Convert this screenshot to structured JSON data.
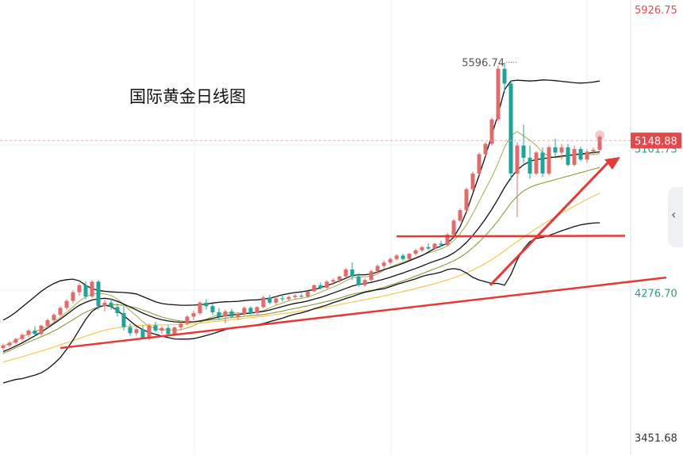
{
  "chart_data": {
    "type": "candlestick",
    "title": "国际黄金日线图",
    "ylim": [
      3451.68,
      5926.75
    ],
    "y_ticks": [
      {
        "value": 5926.75,
        "label": "5926.75",
        "color": "#e04a4a"
      },
      {
        "value": 5101.73,
        "label": "5101.73",
        "color": "#1f9e89"
      },
      {
        "value": 4276.7,
        "label": "4276.70",
        "color": "#1f9e89"
      },
      {
        "value": 3451.68,
        "label": "3451.68",
        "color": "#333333"
      }
    ],
    "current_price": {
      "value": 5148.88,
      "label": "5148.88"
    },
    "high_marker": {
      "value": 5596.74,
      "label": "5596.74"
    },
    "colors": {
      "up": "#e06b6b",
      "down": "#1fa39a",
      "ma_short": "#a7b35a",
      "ma_mid": "#8a9a3c",
      "ma_long": "#f2c94c",
      "band": "#111111",
      "trend": "#e53935",
      "price_line": "#f4a0a0"
    },
    "candles": [
      [
        3960,
        3985,
        3950,
        3975
      ],
      [
        3975,
        4000,
        3965,
        3990
      ],
      [
        3990,
        4020,
        3980,
        4012
      ],
      [
        4012,
        4045,
        4000,
        4035
      ],
      [
        4035,
        4070,
        4020,
        4060
      ],
      [
        4060,
        4085,
        4030,
        4040
      ],
      [
        4040,
        4095,
        4030,
        4088
      ],
      [
        4088,
        4130,
        4075,
        4120
      ],
      [
        4120,
        4160,
        4105,
        4150
      ],
      [
        4150,
        4200,
        4140,
        4190
      ],
      [
        4190,
        4240,
        4180,
        4230
      ],
      [
        4230,
        4290,
        4215,
        4280
      ],
      [
        4280,
        4330,
        4260,
        4320
      ],
      [
        4320,
        4340,
        4240,
        4255
      ],
      [
        4255,
        4350,
        4245,
        4340
      ],
      [
        4340,
        4352,
        4180,
        4200
      ],
      [
        4200,
        4235,
        4170,
        4220
      ],
      [
        4220,
        4245,
        4180,
        4195
      ],
      [
        4195,
        4215,
        4140,
        4160
      ],
      [
        4160,
        4200,
        4060,
        4080
      ],
      [
        4080,
        4100,
        4030,
        4045
      ],
      [
        4045,
        4080,
        4030,
        4068
      ],
      [
        4068,
        4090,
        4010,
        4020
      ],
      [
        4020,
        4100,
        4005,
        4090
      ],
      [
        4090,
        4110,
        4050,
        4060
      ],
      [
        4060,
        4085,
        4040,
        4075
      ],
      [
        4075,
        4090,
        4030,
        4040
      ],
      [
        4040,
        4085,
        4030,
        4078
      ],
      [
        4078,
        4110,
        4060,
        4100
      ],
      [
        4100,
        4150,
        4090,
        4140
      ],
      [
        4140,
        4175,
        4120,
        4160
      ],
      [
        4160,
        4230,
        4150,
        4220
      ],
      [
        4220,
        4240,
        4180,
        4200
      ],
      [
        4200,
        4215,
        4150,
        4165
      ],
      [
        4165,
        4190,
        4120,
        4140
      ],
      [
        4140,
        4180,
        4100,
        4170
      ],
      [
        4170,
        4185,
        4130,
        4140
      ],
      [
        4140,
        4165,
        4120,
        4155
      ],
      [
        4155,
        4200,
        4145,
        4190
      ],
      [
        4190,
        4200,
        4150,
        4160
      ],
      [
        4160,
        4200,
        4150,
        4195
      ],
      [
        4195,
        4260,
        4185,
        4250
      ],
      [
        4250,
        4265,
        4210,
        4220
      ],
      [
        4220,
        4255,
        4205,
        4245
      ],
      [
        4245,
        4265,
        4225,
        4240
      ],
      [
        4240,
        4262,
        4228,
        4252
      ],
      [
        4252,
        4270,
        4240,
        4260
      ],
      [
        4260,
        4275,
        4245,
        4255
      ],
      [
        4255,
        4290,
        4248,
        4285
      ],
      [
        4285,
        4325,
        4280,
        4320
      ],
      [
        4320,
        4335,
        4295,
        4305
      ],
      [
        4305,
        4350,
        4300,
        4340
      ],
      [
        4340,
        4360,
        4320,
        4350
      ],
      [
        4350,
        4375,
        4335,
        4370
      ],
      [
        4370,
        4420,
        4360,
        4410
      ],
      [
        4410,
        4450,
        4350,
        4370
      ],
      [
        4370,
        4390,
        4310,
        4320
      ],
      [
        4320,
        4360,
        4310,
        4350
      ],
      [
        4350,
        4410,
        4340,
        4400
      ],
      [
        4400,
        4440,
        4390,
        4430
      ],
      [
        4430,
        4462,
        4410,
        4450
      ],
      [
        4450,
        4480,
        4440,
        4470
      ],
      [
        4470,
        4498,
        4460,
        4490
      ],
      [
        4490,
        4500,
        4460,
        4470
      ],
      [
        4470,
        4505,
        4465,
        4500
      ],
      [
        4500,
        4530,
        4490,
        4520
      ],
      [
        4520,
        4545,
        4510,
        4538
      ],
      [
        4538,
        4560,
        4520,
        4530
      ],
      [
        4530,
        4562,
        4525,
        4558
      ],
      [
        4558,
        4575,
        4540,
        4550
      ],
      [
        4550,
        4620,
        4545,
        4610
      ],
      [
        4610,
        4700,
        4600,
        4690
      ],
      [
        4690,
        4760,
        4680,
        4750
      ],
      [
        4750,
        4880,
        4740,
        4870
      ],
      [
        4870,
        4970,
        4860,
        4960
      ],
      [
        4960,
        5080,
        4950,
        5070
      ],
      [
        5070,
        5140,
        5060,
        5130
      ],
      [
        5130,
        5280,
        5120,
        5270
      ],
      [
        5270,
        5580,
        5260,
        5560
      ],
      [
        5560,
        5596,
        5420,
        5475
      ],
      [
        5475,
        5490,
        4920,
        4960
      ],
      [
        4960,
        5140,
        4710,
        5120
      ],
      [
        5120,
        5240,
        5020,
        5050
      ],
      [
        5050,
        5120,
        4930,
        4960
      ],
      [
        4960,
        5090,
        4950,
        5080
      ],
      [
        5080,
        5110,
        4940,
        4960
      ],
      [
        4960,
        5120,
        4950,
        5110
      ],
      [
        5110,
        5160,
        5060,
        5080
      ],
      [
        5080,
        5130,
        5040,
        5110
      ],
      [
        5110,
        5130,
        5000,
        5010
      ],
      [
        5010,
        5120,
        5000,
        5100
      ],
      [
        5100,
        5115,
        5030,
        5040
      ],
      [
        5040,
        5100,
        5020,
        5085
      ],
      [
        5085,
        5110,
        5070,
        5095
      ],
      [
        5095,
        5180,
        5090,
        5170
      ]
    ],
    "indicators": {
      "ma_short": [
        3970,
        3985,
        4003,
        4022,
        4042,
        4055,
        4068,
        4085,
        4108,
        4135,
        4165,
        4195,
        4230,
        4252,
        4270,
        4272,
        4270,
        4262,
        4240,
        4210,
        4175,
        4145,
        4110,
        4085,
        4070,
        4065,
        4065,
        4062,
        4065,
        4075,
        4088,
        4105,
        4125,
        4140,
        4150,
        4160,
        4162,
        4160,
        4160,
        4162,
        4165,
        4175,
        4190,
        4205,
        4218,
        4230,
        4240,
        4245,
        4252,
        4265,
        4280,
        4295,
        4310,
        4325,
        4345,
        4362,
        4368,
        4368,
        4372,
        4385,
        4405,
        4425,
        4440,
        4452,
        4465,
        4478,
        4492,
        4505,
        4515,
        4528,
        4545,
        4575,
        4615,
        4665,
        4730,
        4800,
        4870,
        4940,
        5020,
        5110,
        5175,
        5200,
        5175,
        5150,
        5120,
        5080,
        5060,
        5050,
        5055,
        5060,
        5068,
        5072,
        5070,
        5068,
        5075
      ],
      "ma_mid": [
        3930,
        3945,
        3962,
        3978,
        3995,
        4010,
        4025,
        4040,
        4058,
        4078,
        4100,
        4122,
        4145,
        4165,
        4182,
        4195,
        4203,
        4208,
        4208,
        4205,
        4198,
        4190,
        4178,
        4165,
        4150,
        4138,
        4128,
        4120,
        4115,
        4112,
        4110,
        4112,
        4118,
        4122,
        4125,
        4130,
        4135,
        4138,
        4142,
        4145,
        4148,
        4152,
        4158,
        4165,
        4172,
        4180,
        4187,
        4195,
        4202,
        4210,
        4218,
        4227,
        4236,
        4246,
        4257,
        4268,
        4276,
        4283,
        4290,
        4298,
        4308,
        4320,
        4332,
        4345,
        4358,
        4372,
        4386,
        4400,
        4414,
        4428,
        4443,
        4460,
        4480,
        4505,
        4535,
        4568,
        4605,
        4645,
        4690,
        4740,
        4790,
        4830,
        4860,
        4880,
        4895,
        4905,
        4915,
        4925,
        4935,
        4945,
        4955,
        4965,
        4975,
        4985,
        4995
      ],
      "ma_long": [
        3880,
        3890,
        3900,
        3910,
        3921,
        3932,
        3943,
        3954,
        3966,
        3978,
        3990,
        4002,
        4015,
        4028,
        4040,
        4052,
        4062,
        4070,
        4076,
        4081,
        4085,
        4088,
        4090,
        4091,
        4092,
        4093,
        4094,
        4095,
        4096,
        4098,
        4100,
        4103,
        4106,
        4110,
        4114,
        4118,
        4122,
        4126,
        4130,
        4134,
        4138,
        4142,
        4147,
        4152,
        4157,
        4162,
        4167,
        4172,
        4177,
        4183,
        4189,
        4195,
        4202,
        4209,
        4216,
        4223,
        4230,
        4237,
        4244,
        4251,
        4259,
        4267,
        4275,
        4283,
        4292,
        4301,
        4310,
        4319,
        4329,
        4339,
        4350,
        4362,
        4375,
        4390,
        4407,
        4425,
        4445,
        4467,
        4491,
        4517,
        4545,
        4570,
        4595,
        4620,
        4645,
        4668,
        4690,
        4712,
        4733,
        4753,
        4773,
        4793,
        4812,
        4830,
        4848
      ],
      "boll_upper": [
        4120,
        4140,
        4165,
        4195,
        4225,
        4255,
        4285,
        4310,
        4330,
        4345,
        4352,
        4355,
        4345,
        4320,
        4300,
        4290,
        4285,
        4282,
        4280,
        4278,
        4275,
        4270,
        4255,
        4240,
        4225,
        4215,
        4210,
        4208,
        4205,
        4205,
        4206,
        4208,
        4212,
        4218,
        4222,
        4225,
        4226,
        4228,
        4232,
        4235,
        4236,
        4240,
        4245,
        4255,
        4265,
        4272,
        4278,
        4282,
        4288,
        4295,
        4305,
        4318,
        4330,
        4345,
        4360,
        4375,
        4380,
        4380,
        4385,
        4395,
        4410,
        4420,
        4432,
        4445,
        4460,
        4475,
        4490,
        4510,
        4530,
        4545,
        4560,
        4595,
        4655,
        4740,
        4845,
        4950,
        5060,
        5180,
        5300,
        5440,
        5490,
        5495,
        5492,
        5490,
        5492,
        5496,
        5495,
        5492,
        5488,
        5484,
        5480,
        5478,
        5480,
        5484,
        5490
      ],
      "boll_mid": [
        3940,
        3955,
        3972,
        3990,
        4010,
        4030,
        4052,
        4075,
        4100,
        4125,
        4152,
        4180,
        4205,
        4222,
        4235,
        4242,
        4245,
        4240,
        4228,
        4212,
        4195,
        4178,
        4160,
        4145,
        4132,
        4122,
        4115,
        4110,
        4108,
        4108,
        4110,
        4115,
        4122,
        4130,
        4138,
        4145,
        4150,
        4153,
        4156,
        4160,
        4165,
        4170,
        4178,
        4188,
        4198,
        4208,
        4216,
        4222,
        4230,
        4240,
        4250,
        4262,
        4275,
        4288,
        4302,
        4315,
        4324,
        4330,
        4336,
        4345,
        4355,
        4366,
        4378,
        4390,
        4403,
        4416,
        4430,
        4445,
        4458,
        4470,
        4485,
        4505,
        4532,
        4565,
        4605,
        4650,
        4700,
        4755,
        4815,
        4880,
        4935,
        4980,
        5010,
        5030,
        5040,
        5045,
        5050,
        5055,
        5060,
        5064,
        5068,
        5072,
        5076,
        5080,
        5084
      ],
      "boll_lower": [
        3760,
        3770,
        3780,
        3785,
        3795,
        3805,
        3818,
        3840,
        3870,
        3905,
        3952,
        4005,
        4065,
        4124,
        4170,
        4194,
        4205,
        4198,
        4176,
        4146,
        4115,
        4086,
        4065,
        4050,
        4039,
        4029,
        4020,
        4012,
        4011,
        4011,
        4014,
        4022,
        4032,
        4042,
        4054,
        4065,
        4074,
        4078,
        4080,
        4085,
        4094,
        4100,
        4111,
        4121,
        4131,
        4144,
        4154,
        4162,
        4172,
        4185,
        4195,
        4206,
        4220,
        4231,
        4244,
        4255,
        4268,
        4280,
        4287,
        4295,
        4300,
        4312,
        4324,
        4335,
        4346,
        4357,
        4370,
        4380,
        4386,
        4395,
        4410,
        4415,
        4409,
        4390,
        4365,
        4350,
        4340,
        4330,
        4330,
        4320,
        4380,
        4465,
        4528,
        4570,
        4588,
        4594,
        4605,
        4618,
        4632,
        4644,
        4656,
        4666,
        4672,
        4676,
        4678
      ]
    }
  }
}
